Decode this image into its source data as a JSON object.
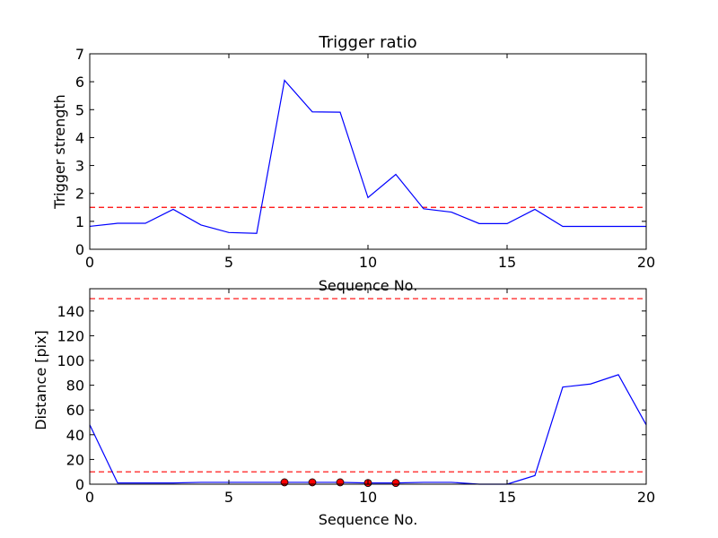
{
  "chart_data": [
    {
      "type": "line",
      "title": "Trigger ratio",
      "xlabel": "Sequence No.",
      "ylabel": "Trigger strength",
      "xlim": [
        0,
        20
      ],
      "ylim": [
        0,
        7
      ],
      "xticks": [
        "0",
        "5",
        "10",
        "15",
        "20"
      ],
      "yticks": [
        "0",
        "1",
        "2",
        "3",
        "4",
        "5",
        "6",
        "7"
      ],
      "grid": false,
      "legend": "none",
      "series": [
        {
          "color": "#0000ff",
          "style": "solid",
          "x": [
            0,
            1,
            2,
            3,
            4,
            5,
            6,
            7,
            8,
            9,
            10,
            11,
            12,
            13,
            14,
            15,
            16,
            17,
            18,
            19,
            20
          ],
          "y": [
            0.82,
            0.93,
            0.93,
            1.43,
            0.87,
            0.6,
            0.57,
            6.05,
            4.92,
            4.91,
            1.85,
            2.68,
            1.45,
            1.33,
            0.92,
            0.92,
            1.43,
            0.82,
            0.82,
            0.82,
            0.82
          ]
        }
      ],
      "reference_lines": [
        {
          "y": 1.5,
          "color": "#ff0000",
          "style": "dashed"
        }
      ]
    },
    {
      "type": "line",
      "title": "",
      "xlabel": "Sequence No.",
      "ylabel": "Distance [pix]",
      "xlim": [
        0,
        20
      ],
      "ylim": [
        0,
        158
      ],
      "xticks": [
        "0",
        "5",
        "10",
        "15",
        "20"
      ],
      "yticks": [
        "0",
        "20",
        "40",
        "60",
        "80",
        "100",
        "120",
        "140"
      ],
      "grid": false,
      "legend": "none",
      "series": [
        {
          "color": "#0000ff",
          "style": "solid",
          "x": [
            0,
            1,
            2,
            3,
            4,
            5,
            6,
            7,
            8,
            9,
            10,
            11,
            12,
            13,
            14,
            15,
            16,
            17,
            18,
            19,
            20
          ],
          "y": [
            48,
            1,
            1,
            1,
            1.5,
            1.5,
            1.5,
            1.5,
            1.5,
            1.5,
            1,
            1,
            1.5,
            1.5,
            0,
            0,
            7,
            78.5,
            81,
            88.5,
            48
          ]
        }
      ],
      "markers": {
        "color": "#ff0000",
        "x": [
          7,
          8,
          9,
          10,
          11
        ],
        "y": [
          1.5,
          1.5,
          1.5,
          1,
          1
        ]
      },
      "reference_lines": [
        {
          "y": 10,
          "color": "#ff0000",
          "style": "dashed"
        },
        {
          "y": 150,
          "color": "#ff0000",
          "style": "dashed"
        }
      ]
    }
  ]
}
